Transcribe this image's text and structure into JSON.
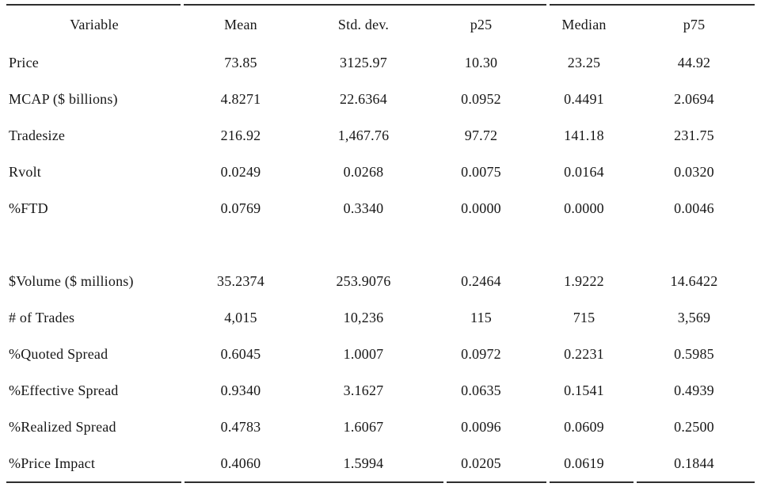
{
  "table": {
    "columns": [
      "Variable",
      "Mean",
      "Std. dev.",
      "p25",
      "Median",
      "p75"
    ],
    "rows": [
      {
        "label": "Price",
        "values": [
          "73.85",
          "3125.97",
          "10.30",
          "23.25",
          "44.92"
        ]
      },
      {
        "label": "MCAP ($ billions)",
        "values": [
          "4.8271",
          "22.6364",
          "0.0952",
          "0.4491",
          "2.0694"
        ]
      },
      {
        "label": "Tradesize",
        "values": [
          "216.92",
          "1,467.76",
          "97.72",
          "141.18",
          "231.75"
        ]
      },
      {
        "label": "Rvolt",
        "values": [
          "0.0249",
          "0.0268",
          "0.0075",
          "0.0164",
          "0.0320"
        ]
      },
      {
        "label": "%FTD",
        "values": [
          "0.0769",
          "0.3340",
          "0.0000",
          "0.0000",
          "0.0046"
        ]
      },
      {
        "label": "",
        "values": [
          "",
          "",
          "",
          "",
          ""
        ],
        "spacer": true
      },
      {
        "label": "$Volume ($ millions)",
        "values": [
          "35.2374",
          "253.9076",
          "0.2464",
          "1.9222",
          "14.6422"
        ]
      },
      {
        "label": "# of Trades",
        "values": [
          "4,015",
          "10,236",
          "115",
          "715",
          "3,569"
        ]
      },
      {
        "label": "%Quoted Spread",
        "values": [
          "0.6045",
          "1.0007",
          "0.0972",
          "0.2231",
          "0.5985"
        ]
      },
      {
        "label": "%Effective Spread",
        "values": [
          "0.9340",
          "3.1627",
          "0.0635",
          "0.1541",
          "0.4939"
        ]
      },
      {
        "label": "%Realized Spread",
        "values": [
          "0.4783",
          "1.6067",
          "0.0096",
          "0.0609",
          "0.2500"
        ]
      },
      {
        "label": "%Price Impact",
        "values": [
          "0.4060",
          "1.5994",
          "0.0205",
          "0.0619",
          "0.1844"
        ]
      }
    ],
    "colors": {
      "background": "#ffffff",
      "text": "#171717",
      "rule": "#2e2e2e"
    }
  }
}
